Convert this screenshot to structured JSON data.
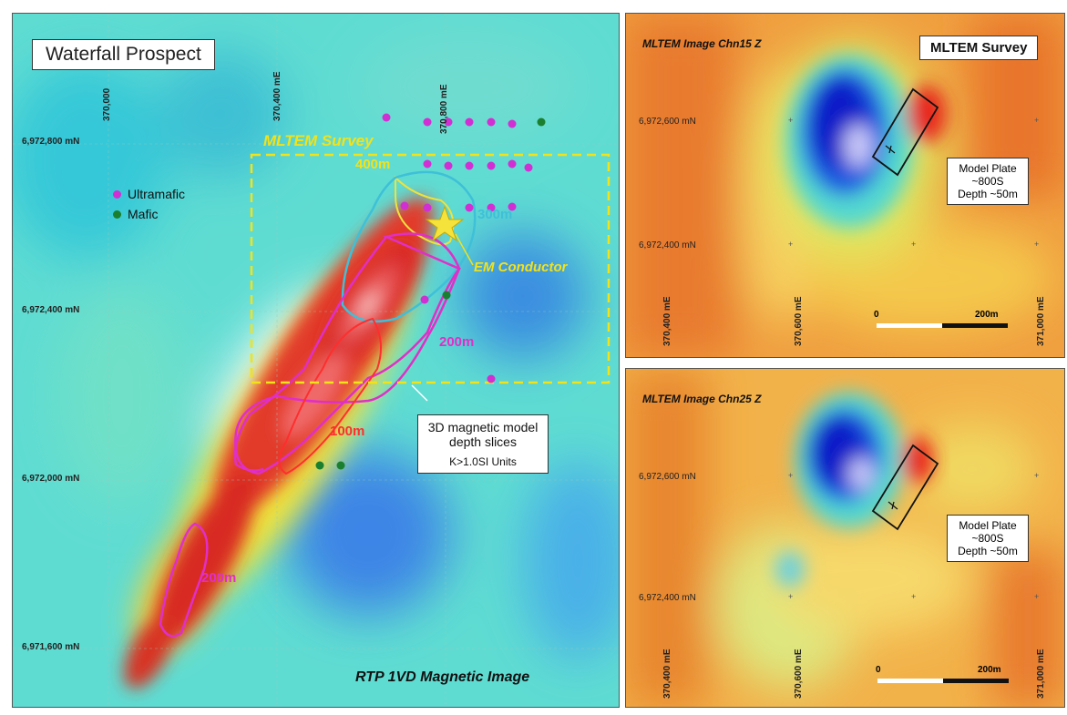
{
  "main_map": {
    "title": "Waterfall Prospect",
    "caption": "RTP 1VD Magnetic Image",
    "survey_label": "MLTEM Survey",
    "conductor_label": "EM Conductor",
    "legend": [
      {
        "label": "Ultramafic",
        "color": "#d12fd4"
      },
      {
        "label": "Mafic",
        "color": "#1a7f2e"
      }
    ],
    "northings": [
      "6,972,800 mN",
      "6,972,400 mN",
      "6,972,000 mN",
      "6,971,600 mN"
    ],
    "eastings": [
      "370,000",
      "370,400 mE",
      "370,800 mE"
    ],
    "contours": {
      "c400": "400m",
      "c300": "300m",
      "c200a": "200m",
      "c100": "100m",
      "c200b": "200m"
    },
    "model_callout": {
      "line1": "3D magnetic model",
      "line2": "depth slices",
      "line3": "K>1.0SI Units"
    },
    "colors": {
      "ultramafic": "#d12fd4",
      "mafic": "#1a7f2e",
      "survey": "#f2e21a",
      "star": "#f5e33b"
    }
  },
  "top_inset": {
    "title": "MLTEM Image Chn15 Z",
    "badge": "MLTEM Survey",
    "northings": [
      "6,972,600 mN",
      "6,972,400 mN"
    ],
    "eastings": [
      "370,400 mE",
      "370,600 mE",
      "371,000 mE"
    ],
    "scale_start": "0",
    "scale_end": "200m",
    "model_plate": {
      "line1": "Model Plate",
      "line2": "~800S",
      "line3": "Depth ~50m"
    }
  },
  "bottom_inset": {
    "title": "MLTEM Image Chn25 Z",
    "northings": [
      "6,972,600 mN",
      "6,972,400 mN"
    ],
    "eastings": [
      "370,400 mE",
      "370,600 mE",
      "371,000 mE"
    ],
    "scale_start": "0",
    "scale_end": "200m",
    "model_plate": {
      "line1": "Model Plate",
      "line2": "~800S",
      "line3": "Depth ~50m"
    }
  }
}
